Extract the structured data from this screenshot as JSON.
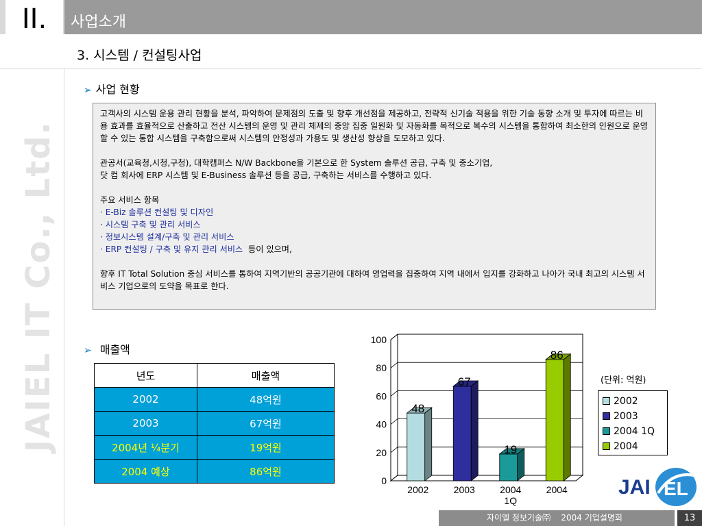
{
  "header": {
    "number": "II.",
    "title": "사업소개"
  },
  "watermark": "JAIEL IT Co., Ltd.",
  "subtitle": "3.  시스템 / 컨설팅사업",
  "section1": {
    "title": "사업 현황"
  },
  "textbox": {
    "p1": "고객사의 시스템 운용 관리 현황을 분석, 파악하여 문제점의 도출 및 향후 개선점을 제공하고, 전략적 신기술 적용을 위한 기술 동향 소개 및 투자에 따르는 비용 효과를 효율적으로 산출하고 전산 시스템의 운영 및 관리 체제의 중앙 집중 일원화 및 자동화를 목적으로 복수의 시스템을 통합하여 최소한의 인원으로 운영할 수 있는 통합 시스템을 구축함으로써 시스템의 안정성과 가용도 및 생산성 향상을 도모하고 있다.",
    "p2a": "관공서(교육청,시청,구청), 대학캠퍼스 N/W Backbone을 기본으로 한 System 솔루션 공급, 구축 및 중소기업,",
    "p2b": "닷 컴 회사에 ERP 시스템 및 E-Business 솔루션 등을 공급, 구축하는 서비스를 수행하고 있다.",
    "services_title": "주요 서비스 항목",
    "services": [
      "· E-Biz 솔루션 컨설팅 및 디자인",
      "· 시스템 구축 및 관리 서비스",
      "· 정보시스템 설계/구축 및 관리 서비스",
      "· ERP 컨설팅 / 구축 및 유지 관리 서비스"
    ],
    "services_tail": "  등이 있으며,",
    "p4": "향후 IT Total Solution 중심 서비스를 통하여 지역기반의 공공기관에 대하여 영업력을 집중하여 지역 내에서 입지를 강화하고 나아가 국내 최고의 시스템 서비스 기업으로의 도약을 목표로 한다."
  },
  "section2": {
    "title": "매출액"
  },
  "table": {
    "headers": [
      "년도",
      "매출액"
    ],
    "rows": [
      [
        "2002",
        "48억원"
      ],
      [
        "2003",
        "67억원"
      ],
      [
        "2004년 ¼분기",
        "19억원"
      ],
      [
        "2004 예상",
        "86억원"
      ]
    ]
  },
  "unit_note": "(단위: 억원)",
  "chart_data": {
    "type": "bar",
    "categories": [
      "2002",
      "2003",
      "2004 1Q",
      "2004"
    ],
    "values": [
      48,
      67,
      19,
      86
    ],
    "ylim": [
      0,
      100
    ],
    "yticks": [
      "0",
      "20",
      "40",
      "60",
      "80",
      "100"
    ],
    "grid": true,
    "legend": "right",
    "colors": [
      "#b3dde0",
      "#2e2e9e",
      "#1b9a9a",
      "#99cc00"
    ],
    "legend_labels": [
      "2002",
      "2003",
      "2004 1Q",
      "2004"
    ]
  },
  "logo": {
    "text_left": "JAI",
    "text_right": "EL",
    "color": "#1a3d8f"
  },
  "footer": {
    "text": "자이엘 정보기술㈜    2004 기업설명회",
    "page": "13"
  }
}
